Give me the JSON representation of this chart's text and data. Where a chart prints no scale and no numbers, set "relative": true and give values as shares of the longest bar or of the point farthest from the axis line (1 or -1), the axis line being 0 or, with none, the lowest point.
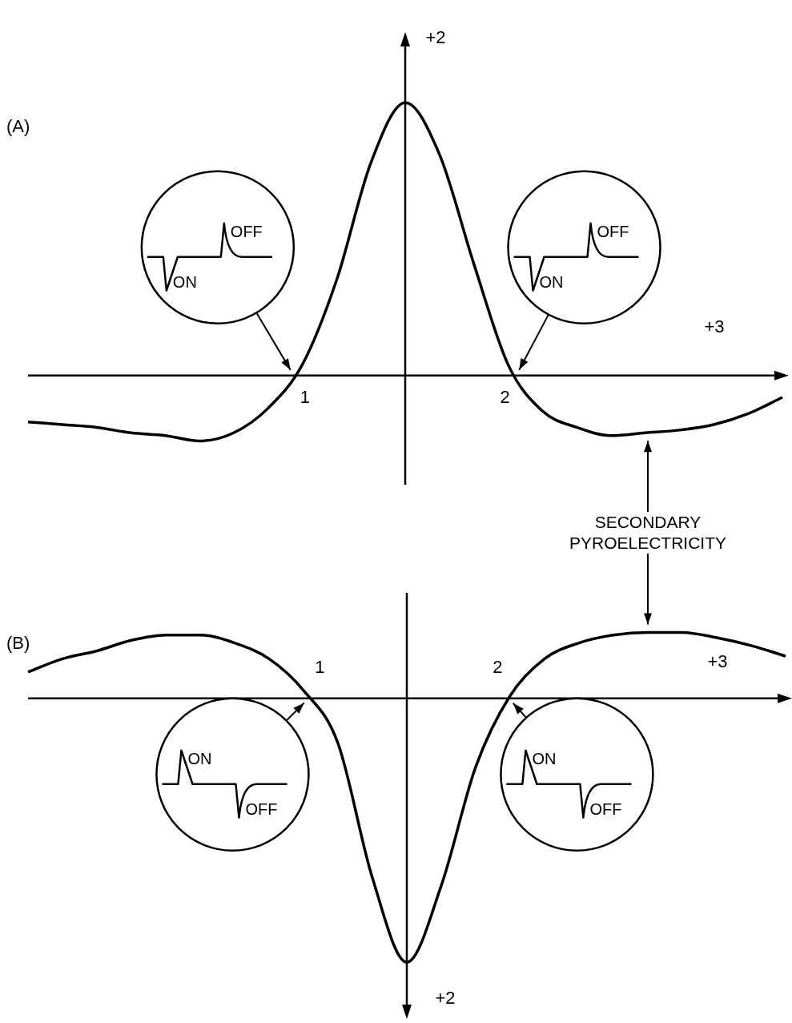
{
  "chart_data": [
    {
      "type": "line",
      "title": "(A)",
      "relative": true,
      "color": "#000000",
      "categories": [
        null,
        null,
        null,
        null,
        null,
        null,
        null,
        null,
        null,
        null,
        null,
        null,
        null,
        null,
        null,
        null,
        null,
        null,
        null,
        null,
        null,
        null,
        null
      ],
      "values": [
        -0.17,
        -0.18,
        -0.19,
        -0.21,
        -0.22,
        -0.24,
        -0.21,
        -0.12,
        0.04,
        0.35,
        0.78,
        1,
        0.81,
        0.41,
        0.04,
        -0.13,
        -0.19,
        -0.22,
        -0.21,
        -0.2,
        -0.18,
        -0.14,
        -0.08
      ],
      "annotations": [
        "1",
        "2",
        "ON",
        "OFF",
        "ON",
        "OFF",
        "+2",
        "+3",
        "SECONDARY PYROELECTRICITY"
      ]
    },
    {
      "type": "line",
      "title": "(B)",
      "relative": true,
      "color": "#000000",
      "categories": [
        null,
        null,
        null,
        null,
        null,
        null,
        null,
        null,
        null,
        null,
        null,
        null,
        null,
        null,
        null,
        null,
        null,
        null,
        null,
        null,
        null,
        null,
        null
      ],
      "values": [
        0.1,
        0.15,
        0.18,
        0.22,
        0.24,
        0.24,
        0.21,
        0.15,
        0.03,
        -0.17,
        -0.68,
        -1,
        -0.71,
        -0.26,
        0.01,
        0.15,
        0.21,
        0.24,
        0.25,
        0.25,
        0.23,
        0.2,
        0.16
      ],
      "annotations": [
        "1",
        "2",
        "ON",
        "OFF",
        "ON",
        "OFF",
        "+2",
        "+3"
      ]
    }
  ]
}
